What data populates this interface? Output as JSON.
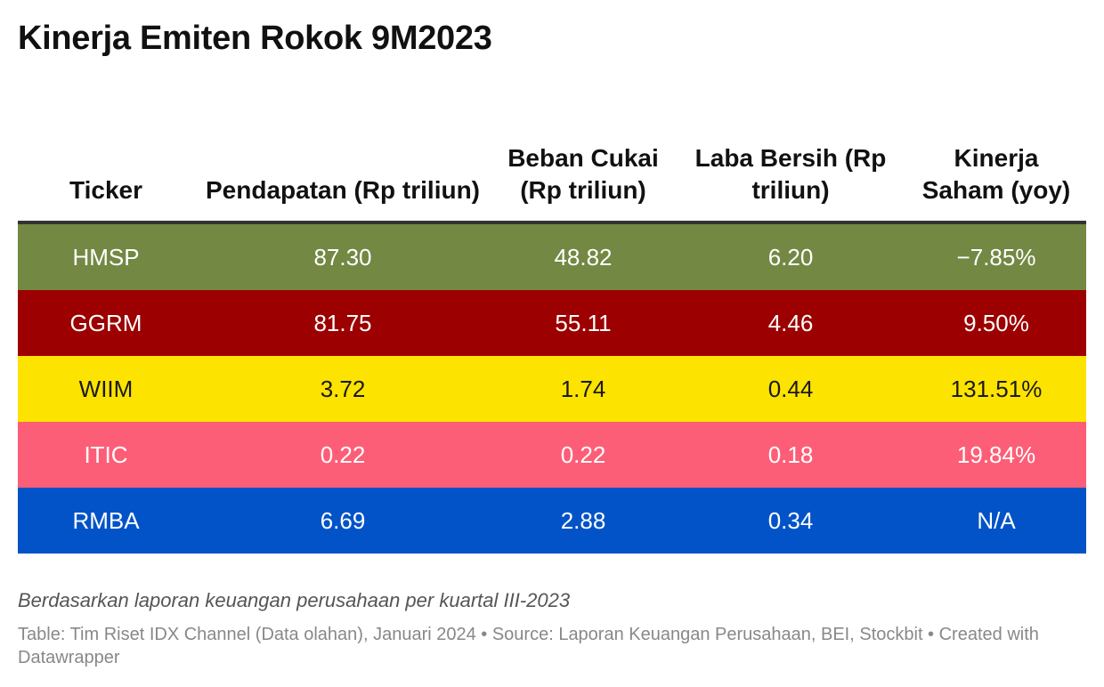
{
  "title": "Kinerja Emiten Rokok 9M2023",
  "chart_data": {
    "type": "table",
    "columns": [
      "Ticker",
      "Pendapatan (Rp triliun)",
      "Beban Cukai (Rp triliun)",
      "Laba Bersih (Rp triliun)",
      "Kinerja Saham (yoy)"
    ],
    "rows": [
      {
        "cells": [
          "HMSP",
          "87.30",
          "48.82",
          "6.20",
          "−7.85%"
        ],
        "bg": "#738843",
        "fg": "#ffffff"
      },
      {
        "cells": [
          "GGRM",
          "81.75",
          "55.11",
          "4.46",
          "9.50%"
        ],
        "bg": "#9c0000",
        "fg": "#ffffff"
      },
      {
        "cells": [
          "WIIM",
          "3.72",
          "1.74",
          "0.44",
          "131.51%"
        ],
        "bg": "#fce300",
        "fg": "#1a1a1a"
      },
      {
        "cells": [
          "ITIC",
          "0.22",
          "0.22",
          "0.18",
          "19.84%"
        ],
        "bg": "#fd5e77",
        "fg": "#ffffff"
      },
      {
        "cells": [
          "RMBA",
          "6.69",
          "2.88",
          "0.34",
          "N/A"
        ],
        "bg": "#0353c8",
        "fg": "#ffffff"
      }
    ]
  },
  "note": "Berdasarkan laporan keuangan perusahaan per kuartal III-2023",
  "footer": "Table: Tim Riset IDX Channel (Data olahan), Januari 2024 • Source: Laporan Keuangan Perusahaan, BEI, Stockbit • Created with Datawrapper"
}
